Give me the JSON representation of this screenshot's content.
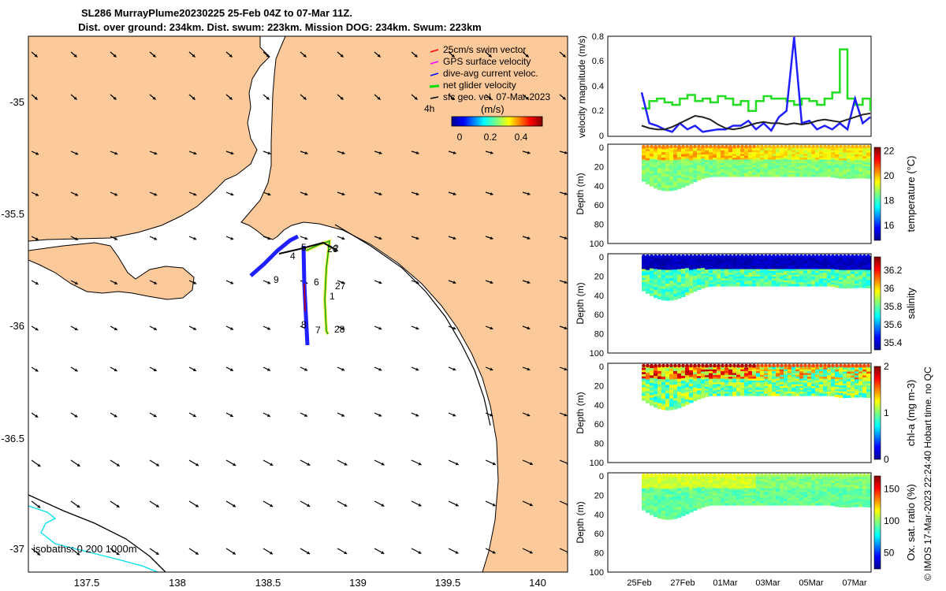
{
  "title_line1": "SL286 MurrayPlume20230225 25-Feb 04Z to 07-Mar 11Z.",
  "title_line2": "Dist. over ground: 234km. Dist. swum: 223km. Mission DOG: 234km. Swum: 223km",
  "watermark": "© IMOS 17-Mar-2023 22:24:40 Hobart time. no QC",
  "map": {
    "lon_ticks": [
      "137.5",
      "138",
      "138.5",
      "139",
      "139.5",
      "140"
    ],
    "lat_ticks": [
      "-35",
      "-35.5",
      "-36",
      "-36.5",
      "-37"
    ],
    "lon_range": [
      137.2,
      140.2
    ],
    "lat_range": [
      -34.78,
      -37.1
    ],
    "legend": [
      {
        "label": "25cm/s swim vector",
        "color": "#ff0000"
      },
      {
        "label": "GPS surface velocity",
        "color": "#ff00ff"
      },
      {
        "label": "dive-avg current veloc.",
        "color": "#0000ff"
      },
      {
        "label": "net glider velocity",
        "color": "#00cc00"
      },
      {
        "label": "sfc geo. vel. 07-Mar-2023",
        "color": "#000000"
      }
    ],
    "colorbar": {
      "prefix": "4h",
      "unit": "(m/s)",
      "ticks": [
        "0",
        "0.2",
        "0.4"
      ],
      "range": [
        -0.05,
        0.55
      ]
    },
    "track_labels": [
      "1",
      "2",
      "4",
      "5",
      "6",
      "7",
      "8",
      "9",
      "26",
      "27",
      "28"
    ],
    "isobaths_label": "isobaths: 0   200 1000m",
    "land_color": "#fbc99a",
    "track_color": "#1f1fff"
  },
  "chart_data": [
    {
      "type": "line",
      "ylabel": "velocity magnitude (m/s)",
      "ylim": [
        0,
        0.8
      ],
      "yticks": [
        "0",
        "0.2",
        "0.4",
        "0.6",
        "0.8"
      ],
      "x": [
        0,
        1,
        2,
        3,
        4,
        5,
        6,
        7,
        8,
        9,
        10,
        11,
        12,
        13,
        14,
        15,
        16,
        17,
        18,
        19,
        20,
        21,
        22,
        23,
        24,
        25,
        26,
        27,
        28,
        29,
        30
      ],
      "series": [
        {
          "name": "net glider velocity",
          "color": "#22dd22",
          "values": [
            0.22,
            0.28,
            0.3,
            0.27,
            0.25,
            0.3,
            0.33,
            0.28,
            0.3,
            0.27,
            0.32,
            0.3,
            0.25,
            0.28,
            0.2,
            0.28,
            0.32,
            0.3,
            0.3,
            0.28,
            0.25,
            0.3,
            0.28,
            0.25,
            0.3,
            0.35,
            0.7,
            0.3,
            0.25,
            0.3,
            0.2
          ]
        },
        {
          "name": "dive-avg current veloc.",
          "color": "#1f1fff",
          "values": [
            0.35,
            0.1,
            0.08,
            0.05,
            0.03,
            0.1,
            0.05,
            0.08,
            0.03,
            0.04,
            0.05,
            0.05,
            0.08,
            0.08,
            0.12,
            0.05,
            0.1,
            0.04,
            0.15,
            0.2,
            0.8,
            0.1,
            0.12,
            0.05,
            0.08,
            0.05,
            0.1,
            0.05,
            0.3,
            0.1,
            0.15
          ]
        },
        {
          "name": "sfc geo. vel.",
          "color": "#222222",
          "values": [
            0.08,
            0.06,
            0.05,
            0.05,
            0.07,
            0.1,
            0.13,
            0.16,
            0.15,
            0.13,
            0.09,
            0.06,
            0.05,
            0.06,
            0.08,
            0.1,
            0.11,
            0.1,
            0.1,
            0.09,
            0.1,
            0.09,
            0.1,
            0.12,
            0.13,
            0.12,
            0.11,
            0.13,
            0.15,
            0.17,
            0.18
          ]
        }
      ]
    },
    {
      "type": "heatmap",
      "ylabel": "Depth (m)",
      "clabel": "temperature (°C)",
      "ylim": [
        100,
        0
      ],
      "yticks": [
        "0",
        "20",
        "40",
        "60",
        "80",
        "100"
      ],
      "cticks": [
        "16",
        "18",
        "20",
        "22"
      ],
      "crange": [
        14.8,
        22.3
      ]
    },
    {
      "type": "heatmap",
      "ylabel": "Depth (m)",
      "clabel": "salinity",
      "ylim": [
        100,
        0
      ],
      "yticks": [
        "0",
        "20",
        "40",
        "60",
        "80",
        "100"
      ],
      "cticks": [
        "35.4",
        "35.6",
        "35.8",
        "36",
        "36.2"
      ],
      "crange": [
        35.32,
        36.35
      ]
    },
    {
      "type": "heatmap",
      "ylabel": "Depth (m)",
      "clabel": "chl-a (mg m-3)",
      "ylim": [
        100,
        0
      ],
      "yticks": [
        "0",
        "20",
        "40",
        "60",
        "80",
        "100"
      ],
      "cticks": [
        "0",
        "1",
        "2"
      ],
      "crange": [
        0,
        2
      ]
    },
    {
      "type": "heatmap",
      "ylabel": "Depth (m)",
      "clabel": "Ox. sat. ratio (%)",
      "ylim": [
        100,
        0
      ],
      "yticks": [
        "0",
        "20",
        "40",
        "60",
        "80",
        "100"
      ],
      "cticks": [
        "50",
        "100",
        "150"
      ],
      "crange": [
        25,
        170
      ]
    }
  ],
  "time_axis": [
    "25Feb",
    "27Feb",
    "01Mar",
    "03Mar",
    "05Mar",
    "07Mar"
  ]
}
